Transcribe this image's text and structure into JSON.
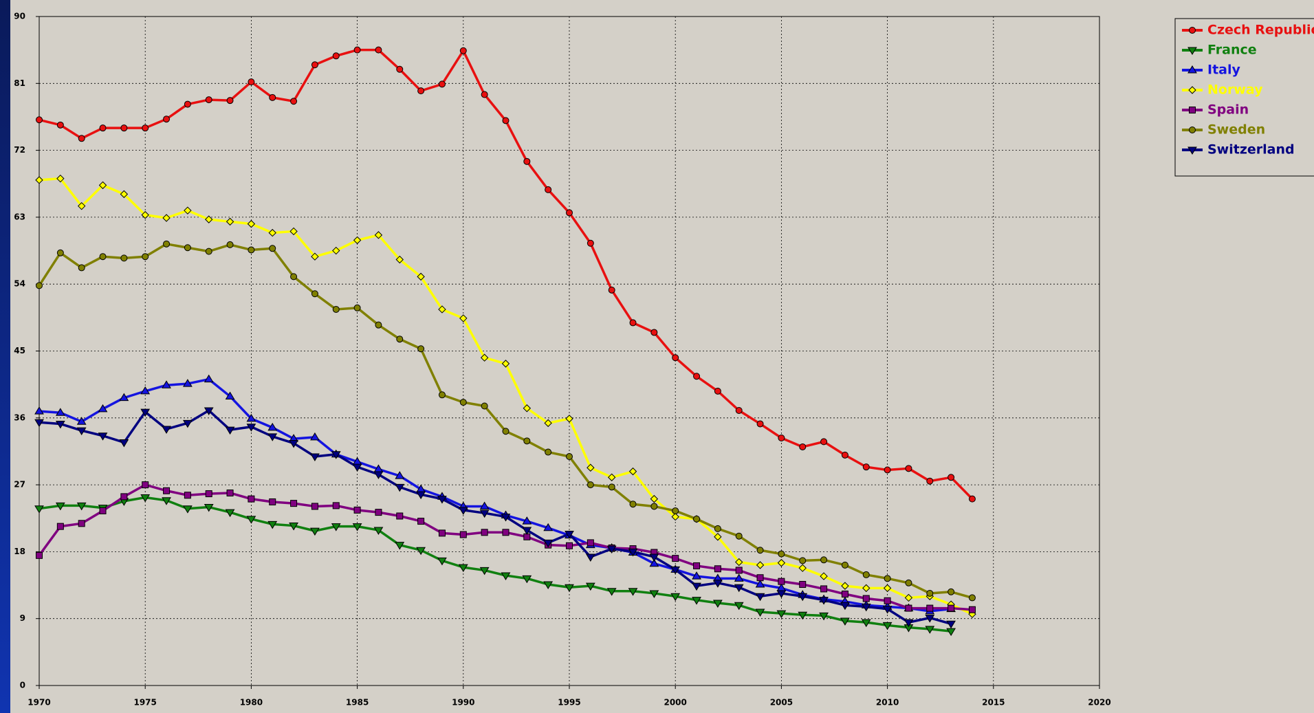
{
  "chart_data": {
    "type": "line",
    "x": [
      1970,
      1971,
      1972,
      1973,
      1974,
      1975,
      1976,
      1977,
      1978,
      1979,
      1980,
      1981,
      1982,
      1983,
      1984,
      1985,
      1986,
      1987,
      1988,
      1989,
      1990,
      1991,
      1992,
      1993,
      1994,
      1995,
      1996,
      1997,
      1998,
      1999,
      2000,
      2001,
      2002,
      2003,
      2004,
      2005,
      2006,
      2007,
      2008,
      2009,
      2010,
      2011,
      2012,
      2013,
      2014
    ],
    "xlim": [
      1970,
      2020
    ],
    "xticks": [
      1970,
      1975,
      1980,
      1985,
      1990,
      1995,
      2000,
      2005,
      2010,
      2015,
      2020
    ],
    "ylim": [
      0,
      90
    ],
    "yticks": [
      0,
      9,
      18,
      27,
      36,
      45,
      54,
      63,
      72,
      81,
      90
    ],
    "grid": true,
    "legend": "right",
    "series": [
      {
        "name": "Czech Republic",
        "color": "#e81010",
        "marker": "circle",
        "values": [
          76.1,
          75.4,
          73.6,
          75.0,
          75.0,
          75.0,
          76.2,
          78.2,
          78.8,
          78.7,
          81.2,
          79.1,
          78.6,
          83.5,
          84.7,
          85.5,
          85.5,
          82.9,
          80.0,
          80.9,
          85.4,
          79.5,
          76.0,
          70.5,
          66.7,
          63.6,
          59.5,
          53.2,
          48.8,
          47.5,
          44.1,
          41.6,
          39.6,
          37.0,
          35.2,
          33.3,
          32.1,
          32.8,
          31.0,
          29.4,
          29.0,
          29.2,
          27.5,
          28.0,
          25.1
        ]
      },
      {
        "name": "France",
        "color": "#108010",
        "marker": "down",
        "values": [
          23.8,
          24.2,
          24.2,
          23.9,
          24.8,
          25.3,
          24.9,
          23.8,
          24.0,
          23.3,
          22.4,
          21.7,
          21.5,
          20.8,
          21.4,
          21.4,
          20.9,
          18.9,
          18.2,
          16.8,
          15.9,
          15.5,
          14.8,
          14.4,
          13.6,
          13.2,
          13.4,
          12.7,
          12.7,
          12.4,
          12.0,
          11.5,
          11.1,
          10.8,
          9.9,
          9.7,
          9.5,
          9.4,
          8.7,
          8.5,
          8.1,
          7.8,
          7.6,
          7.3,
          null
        ]
      },
      {
        "name": "Italy",
        "color": "#1414e0",
        "marker": "up",
        "values": [
          36.9,
          36.7,
          35.5,
          37.2,
          38.7,
          39.6,
          40.4,
          40.6,
          41.2,
          38.9,
          35.9,
          34.7,
          33.2,
          33.4,
          31.1,
          30.1,
          29.1,
          28.2,
          26.4,
          25.4,
          24.1,
          24.1,
          22.9,
          22.1,
          21.2,
          20.2,
          18.9,
          18.5,
          17.9,
          16.4,
          15.6,
          14.7,
          14.4,
          14.4,
          13.6,
          13.1,
          12.2,
          11.6,
          11.3,
          10.8,
          10.6,
          10.4,
          10.0,
          10.3,
          null
        ]
      },
      {
        "name": "Norway",
        "color": "#ffff00",
        "marker": "diamond",
        "values": [
          68.0,
          68.2,
          64.5,
          67.3,
          66.1,
          63.3,
          62.9,
          63.9,
          62.7,
          62.4,
          62.1,
          60.9,
          61.1,
          57.7,
          58.5,
          59.9,
          60.6,
          57.3,
          55.0,
          50.6,
          49.4,
          44.1,
          43.3,
          37.3,
          35.3,
          35.9,
          29.3,
          28.0,
          28.8,
          25.1,
          22.7,
          22.4,
          20.0,
          16.6,
          16.2,
          16.5,
          15.8,
          14.7,
          13.4,
          13.1,
          13.1,
          11.8,
          12.0,
          10.9,
          9.6
        ]
      },
      {
        "name": "Spain",
        "color": "#800080",
        "marker": "square",
        "values": [
          17.5,
          21.4,
          21.8,
          23.5,
          25.4,
          27.0,
          26.2,
          25.6,
          25.8,
          25.9,
          25.1,
          24.7,
          24.5,
          24.1,
          24.2,
          23.6,
          23.3,
          22.8,
          22.1,
          20.5,
          20.3,
          20.6,
          20.6,
          20.0,
          18.9,
          18.8,
          19.2,
          18.5,
          18.4,
          17.9,
          17.1,
          16.1,
          15.7,
          15.5,
          14.5,
          14.0,
          13.6,
          13.0,
          12.3,
          11.7,
          11.4,
          10.4,
          10.4,
          10.4,
          10.2
        ]
      },
      {
        "name": "Sweden",
        "color": "#808000",
        "marker": "circle",
        "values": [
          53.8,
          58.2,
          56.2,
          57.7,
          57.5,
          57.7,
          59.4,
          58.9,
          58.4,
          59.3,
          58.6,
          58.8,
          55.0,
          52.7,
          50.6,
          50.8,
          48.5,
          46.6,
          45.3,
          39.1,
          38.1,
          37.6,
          34.2,
          32.9,
          31.4,
          30.8,
          27.0,
          26.7,
          24.4,
          24.1,
          23.5,
          22.4,
          21.1,
          20.1,
          18.2,
          17.7,
          16.8,
          16.9,
          16.2,
          14.9,
          14.4,
          13.8,
          12.4,
          12.6,
          11.8
        ]
      },
      {
        "name": "Switzerland",
        "color": "#000080",
        "marker": "down",
        "values": [
          35.4,
          35.2,
          34.3,
          33.6,
          32.7,
          36.8,
          34.5,
          35.3,
          37.0,
          34.4,
          34.8,
          33.5,
          32.6,
          30.8,
          31.1,
          29.4,
          28.4,
          26.7,
          25.7,
          25.1,
          23.6,
          23.2,
          22.7,
          20.9,
          19.2,
          20.4,
          17.3,
          18.4,
          18.0,
          17.3,
          15.6,
          13.4,
          13.8,
          13.2,
          12.0,
          12.4,
          12.0,
          11.5,
          10.8,
          10.6,
          10.3,
          8.5,
          9.1,
          8.3,
          null
        ]
      }
    ]
  }
}
